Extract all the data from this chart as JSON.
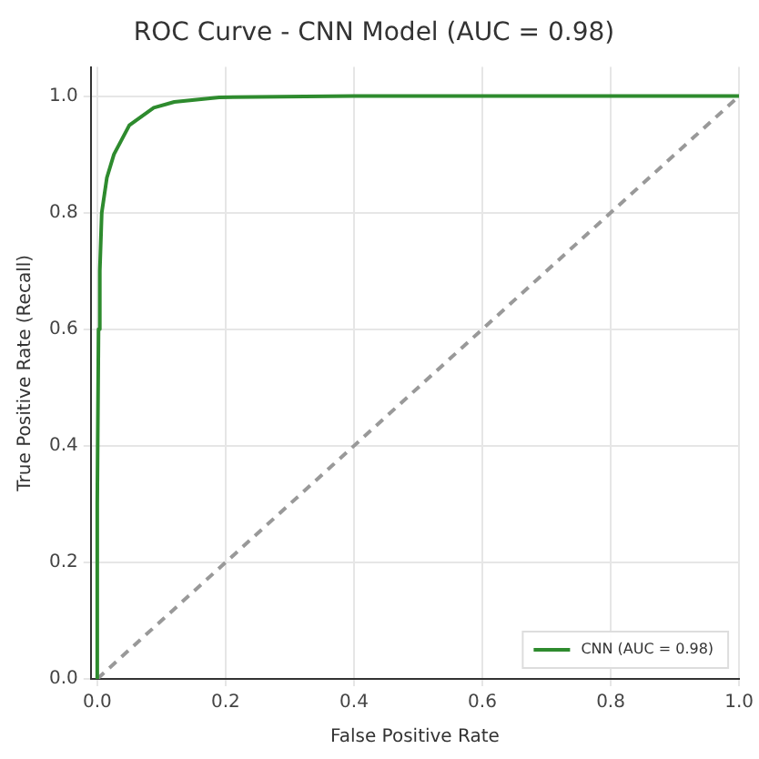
{
  "chart_data": {
    "type": "line",
    "title": "ROC Curve - CNN Model (AUC = 0.98)",
    "xlabel": "False Positive Rate",
    "ylabel": "True Positive Rate (Recall)",
    "series": [
      {
        "name": "CNN (AUC = 0.98)",
        "color": "#2e8b2e",
        "line_style": "solid",
        "x": [
          0,
          0,
          0.002,
          0.004,
          0.007,
          0.015,
          0.026,
          0.05,
          0.088,
          0.12,
          0.19,
          0.4,
          1
        ],
        "values": [
          0,
          0.3,
          0.6,
          0.7,
          0.8,
          0.86,
          0.9,
          0.95,
          0.98,
          0.99,
          0.998,
          1,
          1
        ]
      },
      {
        "color": "#999999",
        "line_style": "dashed",
        "x": [
          0,
          1
        ],
        "values": [
          0,
          1
        ]
      }
    ],
    "xlim": [
      -0.01,
      1.0
    ],
    "ylim": [
      0,
      1.05
    ],
    "xticks": [
      {
        "value": 0,
        "label": "0.0"
      },
      0.2,
      0.4,
      0.6,
      0.8,
      {
        "value": 1,
        "label": "1.0"
      }
    ],
    "yticks": [
      {
        "value": 0,
        "label": "0.0"
      },
      0.2,
      0.4,
      0.6,
      0.8,
      {
        "value": 1,
        "label": "1.0"
      }
    ],
    "grid": true,
    "legend": "bottom right",
    "marker": "none"
  }
}
